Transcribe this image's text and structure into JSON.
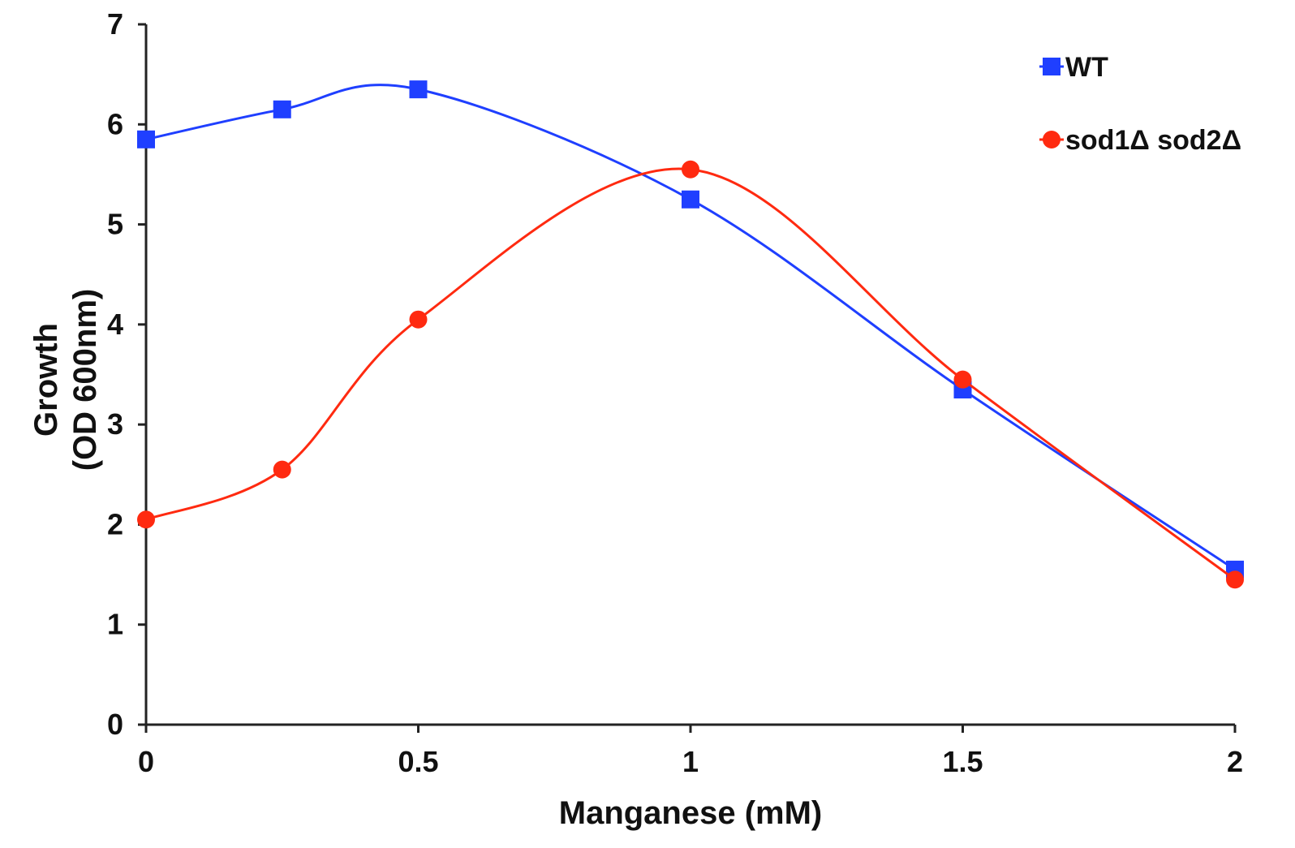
{
  "chart_data": {
    "type": "line",
    "title": "",
    "xlabel": "Manganese (mM)",
    "ylabel_lines": [
      "Growth",
      "(OD 600nm)"
    ],
    "xlim": [
      0,
      2
    ],
    "ylim": [
      0,
      7
    ],
    "xticks": [
      0,
      0.5,
      1,
      1.5,
      2
    ],
    "xtick_labels": [
      "0",
      "0.5",
      "1",
      "1.5",
      "2"
    ],
    "yticks": [
      0,
      1,
      2,
      3,
      4,
      5,
      6,
      7
    ],
    "ytick_labels": [
      "0",
      "1",
      "2",
      "3",
      "4",
      "5",
      "6",
      "7"
    ],
    "grid": false,
    "legend_position": "top-right",
    "smooth": true,
    "x": [
      0,
      0.25,
      0.5,
      1,
      1.5,
      2
    ],
    "series": [
      {
        "name": "WT",
        "marker": "square",
        "color": "#1f3fff",
        "values": [
          5.85,
          6.15,
          6.35,
          5.25,
          3.35,
          1.55
        ]
      },
      {
        "name": "sod1Δ sod2Δ",
        "marker": "circle",
        "color": "#ff2a10",
        "values": [
          2.05,
          2.55,
          4.05,
          5.55,
          3.45,
          1.45
        ]
      }
    ]
  }
}
